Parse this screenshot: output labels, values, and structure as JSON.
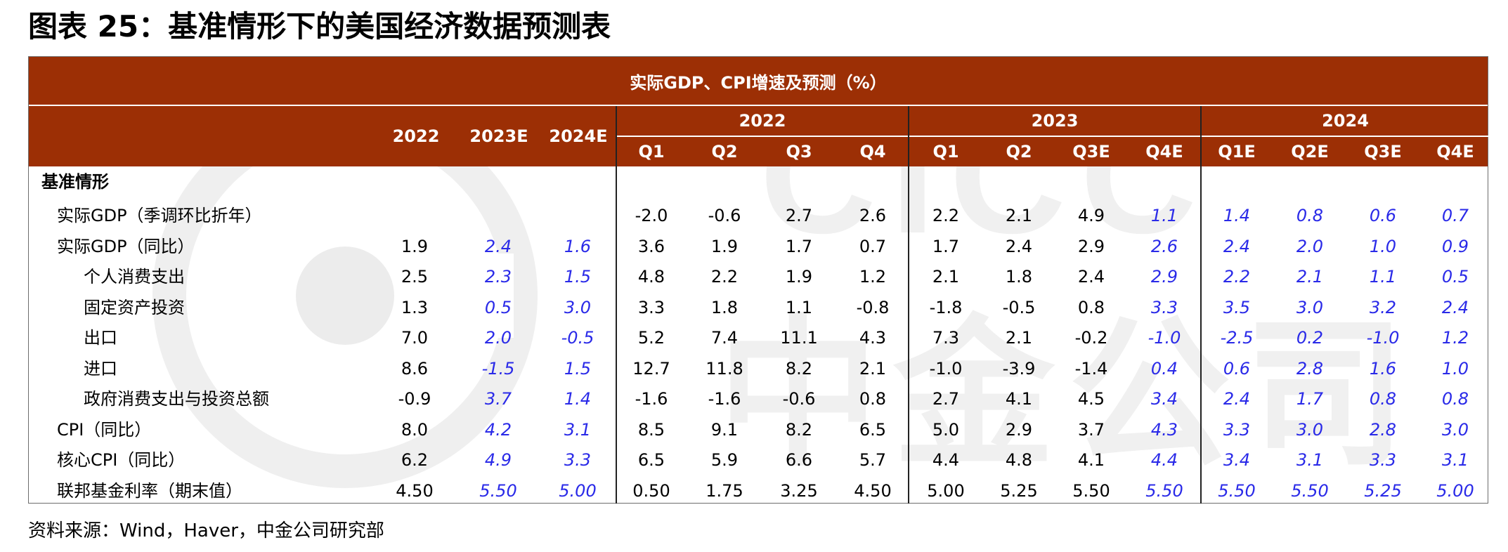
{
  "figure_title": "图表 25：基准情形下的美国经济数据预测表",
  "table": {
    "banner": "实际GDP、CPI增速及预测（%）",
    "annual_headers": [
      "2022",
      "2023E",
      "2024E"
    ],
    "year_groups": [
      "2022",
      "2023",
      "2024"
    ],
    "quarter_headers": [
      "Q1",
      "Q2",
      "Q3",
      "Q4",
      "Q1",
      "Q2",
      "Q3E",
      "Q4E",
      "Q1E",
      "Q2E",
      "Q3E",
      "Q4E"
    ],
    "section_label": "基准情形",
    "rows": [
      {
        "label": "实际GDP（季调环比折年）",
        "indent": 1,
        "values": [
          "",
          "",
          "",
          "-2.0",
          "-0.6",
          "2.7",
          "2.6",
          "2.2",
          "2.1",
          "4.9",
          "1.1",
          "1.4",
          "0.8",
          "0.6",
          "0.7"
        ]
      },
      {
        "label": "实际GDP（同比）",
        "indent": 1,
        "values": [
          "1.9",
          "2.4",
          "1.6",
          "3.6",
          "1.9",
          "1.7",
          "0.7",
          "1.7",
          "2.4",
          "2.9",
          "2.6",
          "2.4",
          "2.0",
          "1.0",
          "0.9"
        ]
      },
      {
        "label": "个人消费支出",
        "indent": 2,
        "values": [
          "2.5",
          "2.3",
          "1.5",
          "4.8",
          "2.2",
          "1.9",
          "1.2",
          "2.1",
          "1.8",
          "2.4",
          "2.9",
          "2.2",
          "2.1",
          "1.1",
          "0.5"
        ]
      },
      {
        "label": "固定资产投资",
        "indent": 2,
        "values": [
          "1.3",
          "0.5",
          "3.0",
          "3.3",
          "1.8",
          "1.1",
          "-0.8",
          "-1.8",
          "-0.5",
          "0.8",
          "3.3",
          "3.5",
          "3.0",
          "3.2",
          "2.4"
        ]
      },
      {
        "label": "出口",
        "indent": 2,
        "values": [
          "7.0",
          "2.0",
          "-0.5",
          "5.2",
          "7.4",
          "11.1",
          "4.3",
          "7.3",
          "2.1",
          "-0.2",
          "-1.0",
          "-2.5",
          "0.2",
          "-1.0",
          "1.2"
        ]
      },
      {
        "label": "进口",
        "indent": 2,
        "values": [
          "8.6",
          "-1.5",
          "1.5",
          "12.7",
          "11.8",
          "8.2",
          "2.1",
          "-1.0",
          "-3.9",
          "-1.4",
          "0.4",
          "0.6",
          "2.8",
          "1.6",
          "1.0"
        ]
      },
      {
        "label": "政府消费支出与投资总额",
        "indent": 2,
        "values": [
          "-0.9",
          "3.7",
          "1.4",
          "-1.6",
          "-1.6",
          "-0.6",
          "0.8",
          "2.7",
          "4.1",
          "4.5",
          "3.4",
          "2.4",
          "1.7",
          "0.8",
          "0.8"
        ]
      },
      {
        "label": "CPI（同比）",
        "indent": 1,
        "values": [
          "8.0",
          "4.2",
          "3.1",
          "8.5",
          "9.1",
          "8.2",
          "6.5",
          "5.0",
          "2.9",
          "3.7",
          "4.3",
          "3.3",
          "3.0",
          "2.8",
          "3.0"
        ]
      },
      {
        "label": "核心CPI（同比）",
        "indent": 1,
        "values": [
          "6.2",
          "4.9",
          "3.3",
          "6.5",
          "5.9",
          "6.6",
          "5.7",
          "4.4",
          "4.8",
          "4.1",
          "4.4",
          "3.4",
          "3.1",
          "3.3",
          "3.1"
        ]
      },
      {
        "label": "联邦基金利率（期末值）",
        "indent": 1,
        "values": [
          "4.50",
          "5.50",
          "5.00",
          "0.50",
          "1.75",
          "3.25",
          "4.50",
          "5.00",
          "5.25",
          "5.50",
          "5.50",
          "5.50",
          "5.50",
          "5.25",
          "5.00"
        ]
      }
    ],
    "forecast_columns": [
      1,
      2,
      10,
      11,
      12,
      13,
      14
    ]
  },
  "source_note": "资料来源：Wind，Haver，中金公司研究部",
  "watermark_text": "CICC 中金公司",
  "colors": {
    "header_bg": "#9c2f05",
    "header_text": "#ffffff",
    "forecast_text": "#2a2ae8",
    "watermark": "#eeeeee"
  }
}
